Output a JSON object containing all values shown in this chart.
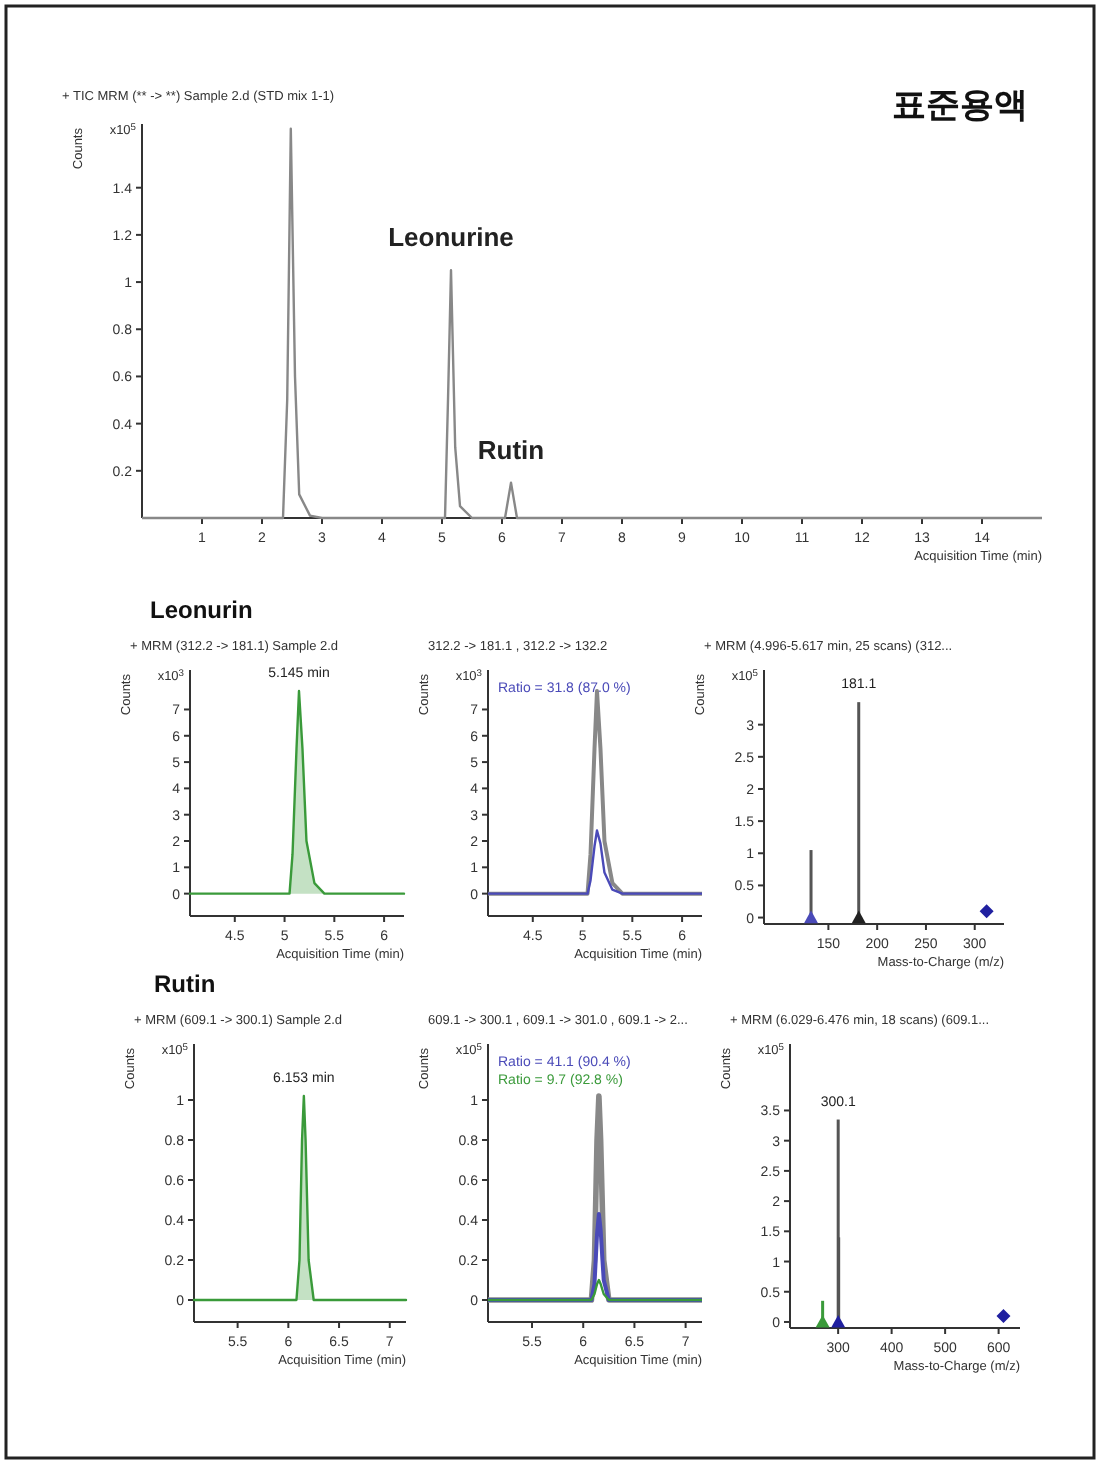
{
  "chart_data": [
    {
      "type": "line",
      "title": "표준용액",
      "subtitle": "+ TIC MRM (** -> **) Sample 2.d (STD mix 1-1)",
      "xlabel": "Acquisition Time (min)",
      "ylabel": "Counts",
      "xlim": [
        0,
        15
      ],
      "xticks": [
        1,
        2,
        3,
        4,
        5,
        6,
        7,
        8,
        9,
        10,
        11,
        12,
        13,
        14
      ],
      "ylim": [
        0,
        1.67
      ],
      "yticks": [
        0.2,
        0.4,
        0.6,
        0.8,
        1,
        1.2,
        1.4
      ],
      "annotations": [
        "x10$^{5}$",
        {
          "text": "Leonurine",
          "x": 5.15,
          "y": 1.05
        },
        {
          "text": "Rutin",
          "x": 6.15,
          "y": 0.15
        }
      ],
      "series": [
        {
          "color": "#888888",
          "x": [
            0,
            2.35,
            2.42,
            2.48,
            2.55,
            2.62,
            2.8,
            3,
            5.05,
            5.1,
            5.15,
            5.22,
            5.3,
            5.5,
            6.05,
            6.15,
            6.25,
            15
          ],
          "values": [
            0,
            0,
            0.5,
            1.65,
            0.6,
            0.1,
            0.01,
            0,
            0,
            0.5,
            1.05,
            0.3,
            0.05,
            0,
            0,
            0.15,
            0,
            0
          ]
        }
      ]
    },
    {
      "type": "area",
      "title": "Leonurin",
      "subtitle": "+ MRM (312.2 -> 181.1) Sample 2.d",
      "xlabel": "Acquisition Time (min)",
      "ylabel": "Counts",
      "xlim": [
        4.05,
        6.2
      ],
      "xticks": [
        4.5,
        5,
        5.5,
        6
      ],
      "ylim": [
        -0.85,
        8.5
      ],
      "yticks": [
        0,
        1,
        2,
        3,
        4,
        5,
        6,
        7
      ],
      "annotations": [
        "x10$^{3}$",
        {
          "text": "5.145 min",
          "x": 5.145,
          "y": 7.7
        }
      ],
      "series": [
        {
          "color": "#3a9a3a",
          "x": [
            4.05,
            5.05,
            5.08,
            5.12,
            5.145,
            5.18,
            5.22,
            5.3,
            5.4,
            6.2
          ],
          "values": [
            0,
            0,
            1.5,
            5.5,
            7.7,
            5.5,
            2.0,
            0.4,
            0,
            0
          ]
        }
      ]
    },
    {
      "type": "line",
      "title": "312.2 -> 181.1 , 312.2 -> 132.2",
      "xlabel": "Acquisition Time (min)",
      "ylabel": "Counts",
      "xlim": [
        4.05,
        6.2
      ],
      "xticks": [
        4.5,
        5,
        5.5,
        6
      ],
      "ylim": [
        -0.85,
        8.5
      ],
      "yticks": [
        0,
        1,
        2,
        3,
        4,
        5,
        6,
        7
      ],
      "annotations": [
        "x10$^{3}$",
        "Ratio = 31.8 (87.0 %)"
      ],
      "series": [
        {
          "color": "#888888",
          "x": [
            4.05,
            5.05,
            5.08,
            5.12,
            5.145,
            5.18,
            5.22,
            5.3,
            5.4,
            6.2
          ],
          "values": [
            0,
            0,
            1.5,
            5.5,
            7.7,
            5.5,
            2.0,
            0.4,
            0,
            0
          ]
        },
        {
          "color": "#4a4ab8",
          "x": [
            4.05,
            5.05,
            5.08,
            5.12,
            5.145,
            5.18,
            5.22,
            5.3,
            5.4,
            6.2
          ],
          "values": [
            0,
            0,
            0.5,
            1.8,
            2.4,
            1.9,
            0.8,
            0.15,
            0,
            0
          ]
        }
      ]
    },
    {
      "type": "bar",
      "title": "+ MRM (4.996-5.617 min, 25 scans) (312...",
      "xlabel": "Mass-to-Charge (m/z)",
      "ylabel": "Counts",
      "xlim": [
        84,
        330
      ],
      "xticks": [
        150,
        200,
        250,
        300
      ],
      "ylim": [
        -0.1,
        3.85
      ],
      "yticks": [
        0,
        0.5,
        1,
        1.5,
        2,
        2.5,
        3
      ],
      "annotations": [
        "x10$^{5}$",
        {
          "text": "181.1",
          "x": 181.1,
          "y": 3.35
        }
      ],
      "series": [
        {
          "color": "#555555",
          "x": [
            132.2,
            181.1
          ],
          "values": [
            1.05,
            3.35
          ]
        },
        {
          "type": "scatter",
          "marker": "triangle",
          "color": "#4a4ab8",
          "x": [
            132.2
          ],
          "values": [
            0
          ]
        },
        {
          "type": "scatter",
          "marker": "triangle",
          "color": "#222222",
          "x": [
            181.1
          ],
          "values": [
            0
          ]
        },
        {
          "type": "scatter",
          "marker": "diamond",
          "color": "#2020a0",
          "x": [
            312.2
          ],
          "values": [
            0.1
          ]
        }
      ]
    },
    {
      "type": "area",
      "title": "Rutin",
      "subtitle": "+ MRM (609.1 -> 300.1) Sample 2.d",
      "xlabel": "Acquisition Time (min)",
      "ylabel": "Counts",
      "xlim": [
        5.07,
        7.16
      ],
      "xticks": [
        5.5,
        6,
        6.5,
        7
      ],
      "ylim": [
        -0.11,
        1.28
      ],
      "yticks": [
        0,
        0.2,
        0.4,
        0.6,
        0.8,
        1
      ],
      "annotations": [
        "x10$^{5}$",
        {
          "text": "6.153 min",
          "x": 6.153,
          "y": 1.02
        }
      ],
      "series": [
        {
          "color": "#3a9a3a",
          "x": [
            5.07,
            6.08,
            6.11,
            6.135,
            6.153,
            6.17,
            6.2,
            6.25,
            7.16
          ],
          "values": [
            0,
            0,
            0.2,
            0.8,
            1.02,
            0.8,
            0.2,
            0,
            0
          ]
        }
      ]
    },
    {
      "type": "line",
      "title": "609.1 -> 300.1 , 609.1 -> 301.0 , 609.1 -> 2...",
      "xlabel": "Acquisition Time (min)",
      "ylabel": "Counts",
      "xlim": [
        5.07,
        7.16
      ],
      "xticks": [
        5.5,
        6,
        6.5,
        7
      ],
      "ylim": [
        -0.11,
        1.28
      ],
      "yticks": [
        0,
        0.2,
        0.4,
        0.6,
        0.8,
        1
      ],
      "annotations": [
        "x10$^{5}$",
        "Ratio = 41.1 (90.4 %)",
        "Ratio = 9.7 (92.8 %)"
      ],
      "series": [
        {
          "color": "#888888",
          "x": [
            5.07,
            6.08,
            6.11,
            6.135,
            6.153,
            6.17,
            6.2,
            6.25,
            7.16
          ],
          "values": [
            0,
            0,
            0.2,
            0.8,
            1.02,
            0.8,
            0.2,
            0,
            0
          ]
        },
        {
          "color": "#4a4ab8",
          "x": [
            5.07,
            6.08,
            6.11,
            6.135,
            6.153,
            6.17,
            6.2,
            6.25,
            7.16
          ],
          "values": [
            0,
            0,
            0.08,
            0.33,
            0.43,
            0.35,
            0.1,
            0,
            0
          ]
        },
        {
          "color": "#3a9a3a",
          "x": [
            5.07,
            6.08,
            6.11,
            6.135,
            6.153,
            6.17,
            6.2,
            6.25,
            7.16
          ],
          "values": [
            0,
            0,
            0.03,
            0.08,
            0.1,
            0.08,
            0.03,
            0,
            0
          ]
        }
      ]
    },
    {
      "type": "bar",
      "title": "+ MRM (6.029-6.476 min, 18 scans) (609.1...",
      "xlabel": "Mass-to-Charge (m/z)",
      "ylabel": "Counts",
      "xlim": [
        210,
        640
      ],
      "xticks": [
        300,
        400,
        500,
        600
      ],
      "ylim": [
        -0.1,
        4.6
      ],
      "yticks": [
        0,
        0.5,
        1,
        1.5,
        2,
        2.5,
        3,
        3.5
      ],
      "annotations": [
        "x10$^{5}$",
        {
          "text": "300.1",
          "x": 300.1,
          "y": 3.35
        }
      ],
      "series": [
        {
          "color": "#555555",
          "x": [
            300.1,
            301.0
          ],
          "values": [
            3.35,
            1.4
          ]
        },
        {
          "color": "#3a9a3a",
          "x": [
            271
          ],
          "values": [
            0.35
          ]
        },
        {
          "type": "scatter",
          "marker": "triangle",
          "color": "#3a9a3a",
          "x": [
            271
          ],
          "values": [
            0
          ]
        },
        {
          "type": "scatter",
          "marker": "triangle",
          "color": "#2020a0",
          "x": [
            300.1
          ],
          "values": [
            0
          ]
        },
        {
          "type": "scatter",
          "marker": "diamond",
          "color": "#2020a0",
          "x": [
            609.1
          ],
          "values": [
            0.1
          ]
        }
      ]
    }
  ]
}
